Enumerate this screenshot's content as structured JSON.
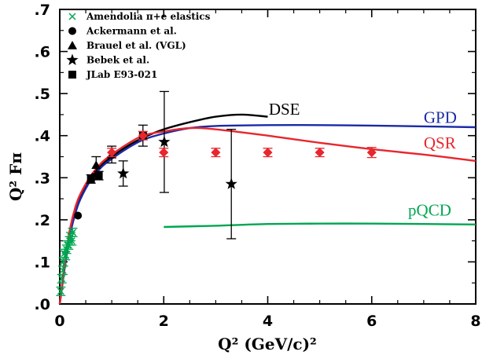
{
  "chart_data": {
    "type": "scatter",
    "xlabel": "Q² (GeV/c)²",
    "ylabel": "Q² Fπ",
    "xlim": [
      0,
      8
    ],
    "ylim": [
      0,
      0.7
    ],
    "x_ticks": [
      {
        "value": 0,
        "label": "0"
      },
      {
        "value": 2,
        "label": "2"
      },
      {
        "value": 4,
        "label": "4"
      },
      {
        "value": 6,
        "label": "6"
      },
      {
        "value": 8,
        "label": "8"
      }
    ],
    "y_ticks": [
      {
        "value": 0.0,
        "label": ".0"
      },
      {
        "value": 0.1,
        "label": ".1"
      },
      {
        "value": 0.2,
        "label": ".2"
      },
      {
        "value": 0.3,
        "label": ".3"
      },
      {
        "value": 0.4,
        "label": ".4"
      },
      {
        "value": 0.5,
        "label": ".5"
      },
      {
        "value": 0.6,
        "label": ".6"
      },
      {
        "value": 0.7,
        "label": ".7"
      }
    ],
    "legend_position": "top-left",
    "legend": [
      {
        "label": "Amendolia π+e elastics",
        "marker": "x",
        "color": "#00a651"
      },
      {
        "label": "Ackermann et al.",
        "marker": "circle",
        "color": "#000000"
      },
      {
        "label": "Brauel et al. (VGL)",
        "marker": "triangle",
        "color": "#000000"
      },
      {
        "label": "Bebek et al.",
        "marker": "star",
        "color": "#000000"
      },
      {
        "label": "JLab E93-021",
        "marker": "square",
        "color": "#000000"
      }
    ],
    "curves": [
      {
        "label": "DSE",
        "color": "#000000",
        "label_at": [
          4.02,
          0.45
        ],
        "points": [
          [
            0.0,
            0.0
          ],
          [
            0.05,
            0.05
          ],
          [
            0.1,
            0.1
          ],
          [
            0.2,
            0.175
          ],
          [
            0.3,
            0.22
          ],
          [
            0.4,
            0.255
          ],
          [
            0.6,
            0.3
          ],
          [
            0.8,
            0.33
          ],
          [
            1.0,
            0.35
          ],
          [
            1.3,
            0.375
          ],
          [
            1.6,
            0.395
          ],
          [
            2.0,
            0.415
          ],
          [
            2.5,
            0.432
          ],
          [
            3.0,
            0.445
          ],
          [
            3.5,
            0.45
          ],
          [
            4.0,
            0.445
          ]
        ]
      },
      {
        "label": "GPD",
        "color": "#1a2aa6",
        "label_at": [
          7.0,
          0.43
        ],
        "points": [
          [
            0.0,
            0.0
          ],
          [
            0.05,
            0.045
          ],
          [
            0.1,
            0.09
          ],
          [
            0.2,
            0.165
          ],
          [
            0.3,
            0.215
          ],
          [
            0.4,
            0.25
          ],
          [
            0.6,
            0.295
          ],
          [
            0.8,
            0.325
          ],
          [
            1.0,
            0.345
          ],
          [
            1.3,
            0.37
          ],
          [
            1.6,
            0.39
          ],
          [
            2.0,
            0.405
          ],
          [
            2.5,
            0.418
          ],
          [
            3.0,
            0.423
          ],
          [
            4.0,
            0.425
          ],
          [
            5.0,
            0.425
          ],
          [
            6.0,
            0.424
          ],
          [
            7.0,
            0.422
          ],
          [
            8.0,
            0.42
          ]
        ]
      },
      {
        "label": "QSR",
        "color": "#e8262d",
        "label_at": [
          7.0,
          0.37
        ],
        "points": [
          [
            0.0,
            0.0
          ],
          [
            0.05,
            0.05
          ],
          [
            0.1,
            0.1
          ],
          [
            0.2,
            0.18
          ],
          [
            0.3,
            0.23
          ],
          [
            0.4,
            0.262
          ],
          [
            0.6,
            0.305
          ],
          [
            0.8,
            0.335
          ],
          [
            1.0,
            0.355
          ],
          [
            1.3,
            0.38
          ],
          [
            1.6,
            0.4
          ],
          [
            2.0,
            0.41
          ],
          [
            2.5,
            0.418
          ],
          [
            3.0,
            0.415
          ],
          [
            4.0,
            0.4
          ],
          [
            5.0,
            0.383
          ],
          [
            6.0,
            0.368
          ],
          [
            7.0,
            0.355
          ],
          [
            8.0,
            0.34
          ]
        ]
      },
      {
        "label": "pQCD",
        "color": "#00a651",
        "label_at": [
          6.7,
          0.21
        ],
        "points": [
          [
            2.0,
            0.183
          ],
          [
            3.0,
            0.186
          ],
          [
            4.0,
            0.19
          ],
          [
            5.0,
            0.191
          ],
          [
            6.0,
            0.191
          ],
          [
            7.0,
            0.19
          ],
          [
            8.0,
            0.189
          ]
        ]
      }
    ],
    "series": [
      {
        "name": "Amendolia π+e elastics",
        "marker": "x",
        "color": "#00a651",
        "points": [
          [
            0.02,
            0.03,
            0.01
          ],
          [
            0.04,
            0.06,
            0.01
          ],
          [
            0.06,
            0.08,
            0.01
          ],
          [
            0.07,
            0.1,
            0.01
          ],
          [
            0.09,
            0.12,
            0.01
          ],
          [
            0.11,
            0.115,
            0.01
          ],
          [
            0.13,
            0.13,
            0.01
          ],
          [
            0.15,
            0.14,
            0.01
          ],
          [
            0.17,
            0.14,
            0.01
          ],
          [
            0.19,
            0.15,
            0.01
          ],
          [
            0.21,
            0.16,
            0.01
          ],
          [
            0.23,
            0.15,
            0.01
          ],
          [
            0.25,
            0.17,
            0.01
          ]
        ]
      },
      {
        "name": "Ackermann et al.",
        "marker": "circle",
        "color": "#000000",
        "points": [
          [
            0.35,
            0.21,
            0.0
          ]
        ]
      },
      {
        "name": "Brauel et al. (VGL)",
        "marker": "triangle",
        "color": "#000000",
        "points": [
          [
            0.7,
            0.33,
            0.02
          ],
          [
            1.0,
            0.355,
            0.02
          ]
        ]
      },
      {
        "name": "Bebek et al.",
        "marker": "star",
        "color": "#000000",
        "points": [
          [
            1.22,
            0.31,
            0.03
          ],
          [
            2.01,
            0.385,
            0.12
          ],
          [
            3.3,
            0.285,
            0.13
          ]
        ]
      },
      {
        "name": "JLab E93-021",
        "marker": "square",
        "color": "#000000",
        "points": [
          [
            0.6,
            0.297,
            0.01
          ],
          [
            0.75,
            0.305,
            0.01
          ],
          [
            1.6,
            0.4,
            0.025
          ]
        ]
      },
      {
        "marker": "diamond",
        "color": "#e8262d",
        "points": [
          [
            1.0,
            0.36,
            0.01
          ],
          [
            1.6,
            0.4,
            0.01
          ],
          [
            2.0,
            0.36,
            0.01
          ],
          [
            3.0,
            0.36,
            0.01
          ],
          [
            4.0,
            0.36,
            0.01
          ],
          [
            5.0,
            0.36,
            0.01
          ],
          [
            6.0,
            0.36,
            0.012
          ]
        ]
      }
    ]
  }
}
